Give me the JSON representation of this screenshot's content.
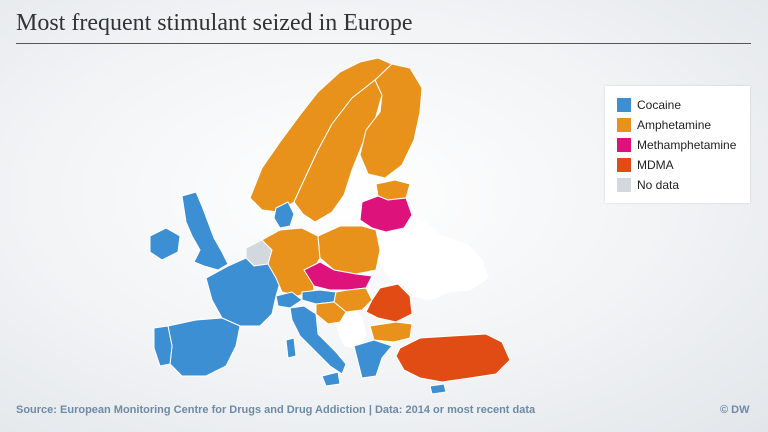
{
  "title": "Most frequent stimulant seized in Europe",
  "legend": [
    {
      "label": "Cocaine",
      "color": "#3d8fd4"
    },
    {
      "label": "Amphetamine",
      "color": "#e8921c"
    },
    {
      "label": "Methamphetamine",
      "color": "#de127b"
    },
    {
      "label": "MDMA",
      "color": "#e04c14"
    },
    {
      "label": "No data",
      "color": "#d2d8de"
    }
  ],
  "colors": {
    "cocaine": "#3d8fd4",
    "amphetamine": "#e8921c",
    "methamphetamine": "#de127b",
    "mdma": "#e04c14",
    "no_data": "#d2d8de",
    "not_covered": "#ffffff"
  },
  "footer": {
    "source": "Source: European Monitoring Centre for Drugs and Drug Addiction  |  Data: 2014 or most recent data",
    "credit": "© DW"
  }
}
